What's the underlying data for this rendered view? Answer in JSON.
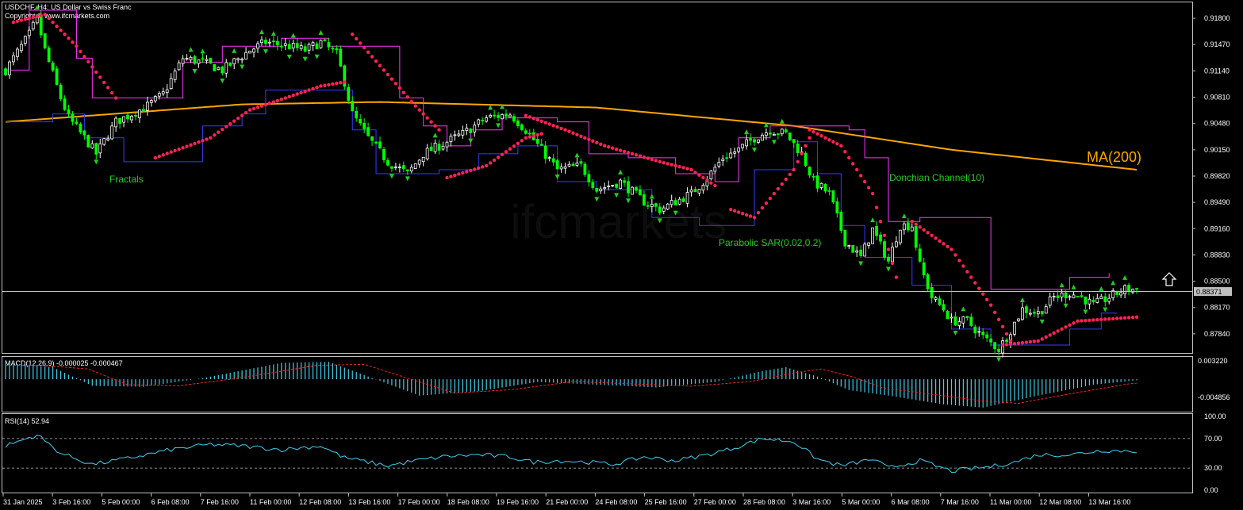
{
  "header": {
    "symbol_line": "USDCHF, H4:  US Dollar vs Swiss Franc",
    "copyright": "Copyright © www.ifcmarkets.com",
    "watermark": "ifcmarkets"
  },
  "colors": {
    "background": "#000000",
    "frame": "#c0c0c0",
    "axis_text": "#ffffff",
    "bull_candle": "#ffffff",
    "bear_candle": "#00ff00",
    "ma200": "#ffa500",
    "donchian_upper": "#ff33ff",
    "donchian_lower": "#3a3aff",
    "sar": "#ff2255",
    "fractal": "#22cc22",
    "macd_hist": "#40d0f0",
    "macd_signal": "#ff2222",
    "rsi_line": "#40d0f0",
    "annotation": "#22cc22",
    "price_line": "#c0c0c0"
  },
  "chart_data": {
    "type": "candlestick",
    "symbol": "USDCHF",
    "timeframe": "H4",
    "current_price": 0.88371,
    "price_axis": {
      "range": [
        0.876,
        0.92
      ],
      "ticks": [
        "0.91800",
        "0.91470",
        "0.91140",
        "0.90810",
        "0.90480",
        "0.90150",
        "0.89820",
        "0.89490",
        "0.89160",
        "0.88830",
        "0.88500",
        "0.88170",
        "0.87840"
      ]
    },
    "time_axis": {
      "ticks": [
        "31 Jan 2025",
        "3 Feb 16:00",
        "5 Feb 00:00",
        "6 Feb 08:00",
        "7 Feb 16:00",
        "11 Feb 00:00",
        "12 Feb 08:00",
        "13 Feb 16:00",
        "17 Feb 00:00",
        "18 Feb 08:00",
        "19 Feb 16:00",
        "21 Feb 00:00",
        "24 Feb 08:00",
        "25 Feb 16:00",
        "27 Feb 00:00",
        "28 Feb 08:00",
        "3 Mar 16:00",
        "5 Mar 00:00",
        "6 Mar 08:00",
        "7 Mar 16:00",
        "11 Mar 00:00",
        "12 Mar 08:00",
        "13 Mar 16:00"
      ]
    },
    "close_anchors": [
      [
        0,
        0.9115
      ],
      [
        6,
        0.916
      ],
      [
        8,
        0.918
      ],
      [
        10,
        0.914
      ],
      [
        14,
        0.908
      ],
      [
        16,
        0.9055
      ],
      [
        20,
        0.903
      ],
      [
        23,
        0.901
      ],
      [
        28,
        0.905
      ],
      [
        32,
        0.906
      ],
      [
        36,
        0.907
      ],
      [
        40,
        0.9085
      ],
      [
        45,
        0.913
      ],
      [
        50,
        0.9125
      ],
      [
        55,
        0.9115
      ],
      [
        62,
        0.914
      ],
      [
        66,
        0.915
      ],
      [
        72,
        0.9145
      ],
      [
        76,
        0.914
      ],
      [
        80,
        0.915
      ],
      [
        84,
        0.9135
      ],
      [
        86,
        0.91
      ],
      [
        88,
        0.906
      ],
      [
        92,
        0.903
      ],
      [
        97,
        0.9
      ],
      [
        102,
        0.8985
      ],
      [
        106,
        0.901
      ],
      [
        110,
        0.902
      ],
      [
        116,
        0.9035
      ],
      [
        122,
        0.9055
      ],
      [
        128,
        0.906
      ],
      [
        132,
        0.904
      ],
      [
        136,
        0.9015
      ],
      [
        140,
        0.899
      ],
      [
        146,
        0.8995
      ],
      [
        150,
        0.8965
      ],
      [
        156,
        0.8975
      ],
      [
        162,
        0.895
      ],
      [
        166,
        0.894
      ],
      [
        170,
        0.895
      ],
      [
        174,
        0.896
      ],
      [
        178,
        0.898
      ],
      [
        182,
        0.9005
      ],
      [
        186,
        0.9015
      ],
      [
        190,
        0.903
      ],
      [
        194,
        0.904
      ],
      [
        198,
        0.9035
      ],
      [
        202,
        0.901
      ],
      [
        205,
        0.8975
      ],
      [
        209,
        0.896
      ],
      [
        213,
        0.89
      ],
      [
        217,
        0.888
      ],
      [
        220,
        0.8915
      ],
      [
        224,
        0.8875
      ],
      [
        227,
        0.892
      ],
      [
        230,
        0.892
      ],
      [
        232,
        0.887
      ],
      [
        235,
        0.883
      ],
      [
        238,
        0.8815
      ],
      [
        240,
        0.88
      ],
      [
        244,
        0.88
      ],
      [
        248,
        0.878
      ],
      [
        252,
        0.8765
      ],
      [
        254,
        0.878
      ],
      [
        258,
        0.8815
      ],
      [
        262,
        0.881
      ],
      [
        266,
        0.883
      ],
      [
        270,
        0.8835
      ],
      [
        273,
        0.883
      ],
      [
        276,
        0.882
      ],
      [
        280,
        0.883
      ],
      [
        284,
        0.884
      ],
      [
        287,
        0.884
      ]
    ],
    "ma200": [
      [
        0,
        0.905
      ],
      [
        60,
        0.9072
      ],
      [
        95,
        0.9075
      ],
      [
        150,
        0.9068
      ],
      [
        200,
        0.9045
      ],
      [
        240,
        0.9015
      ],
      [
        287,
        0.899
      ]
    ],
    "sar_segments": [
      {
        "side": "above",
        "points": [
          [
            2,
            0.9175
          ],
          [
            10,
            0.9185
          ],
          [
            18,
            0.9145
          ],
          [
            28,
            0.908
          ]
        ]
      },
      {
        "side": "below",
        "points": [
          [
            38,
            0.9005
          ],
          [
            52,
            0.903
          ],
          [
            62,
            0.9065
          ],
          [
            80,
            0.9095
          ],
          [
            86,
            0.91
          ]
        ]
      },
      {
        "side": "above",
        "points": [
          [
            88,
            0.916
          ],
          [
            96,
            0.9115
          ],
          [
            104,
            0.907
          ],
          [
            110,
            0.904
          ]
        ]
      },
      {
        "side": "below",
        "points": [
          [
            112,
            0.898
          ],
          [
            122,
            0.8995
          ],
          [
            132,
            0.903
          ],
          [
            136,
            0.9035
          ]
        ]
      },
      {
        "side": "above",
        "points": [
          [
            132,
            0.9058
          ],
          [
            142,
            0.904
          ],
          [
            152,
            0.902
          ],
          [
            166,
            0.9
          ],
          [
            174,
            0.899
          ],
          [
            180,
            0.897
          ]
        ]
      },
      {
        "side": "below",
        "points": [
          [
            184,
            0.894
          ],
          [
            190,
            0.893
          ],
          [
            200,
            0.899
          ],
          [
            204,
            0.903
          ]
        ]
      },
      {
        "side": "above",
        "points": [
          [
            204,
            0.904
          ],
          [
            212,
            0.902
          ],
          [
            220,
            0.896
          ],
          [
            226,
            0.8855
          ]
        ]
      },
      {
        "side": "above",
        "points": [
          [
            230,
            0.8925
          ],
          [
            240,
            0.889
          ],
          [
            250,
            0.882
          ],
          [
            255,
            0.8775
          ]
        ]
      },
      {
        "side": "below",
        "points": [
          [
            253,
            0.877
          ],
          [
            262,
            0.8775
          ],
          [
            272,
            0.88
          ],
          [
            287,
            0.8805
          ]
        ]
      }
    ],
    "donchian_upper": [
      [
        0,
        0.9115
      ],
      [
        6,
        0.919
      ],
      [
        15,
        0.919
      ],
      [
        18,
        0.913
      ],
      [
        22,
        0.908
      ],
      [
        40,
        0.908
      ],
      [
        45,
        0.9125
      ],
      [
        55,
        0.9145
      ],
      [
        70,
        0.9155
      ],
      [
        82,
        0.9145
      ],
      [
        96,
        0.9145
      ],
      [
        100,
        0.908
      ],
      [
        106,
        0.9045
      ],
      [
        112,
        0.902
      ],
      [
        118,
        0.904
      ],
      [
        126,
        0.9055
      ],
      [
        140,
        0.905
      ],
      [
        148,
        0.901
      ],
      [
        158,
        0.9005
      ],
      [
        170,
        0.8985
      ],
      [
        180,
        0.8975
      ],
      [
        186,
        0.903
      ],
      [
        194,
        0.9045
      ],
      [
        214,
        0.904
      ],
      [
        218,
        0.9005
      ],
      [
        224,
        0.8925
      ],
      [
        232,
        0.893
      ],
      [
        244,
        0.893
      ],
      [
        250,
        0.884
      ],
      [
        256,
        0.884
      ],
      [
        264,
        0.884
      ],
      [
        270,
        0.8855
      ],
      [
        280,
        0.886
      ]
    ],
    "donchian_lower": [
      [
        0,
        0.905
      ],
      [
        12,
        0.906
      ],
      [
        20,
        0.903
      ],
      [
        30,
        0.9
      ],
      [
        42,
        0.9
      ],
      [
        50,
        0.9045
      ],
      [
        60,
        0.906
      ],
      [
        66,
        0.909
      ],
      [
        80,
        0.909
      ],
      [
        88,
        0.904
      ],
      [
        94,
        0.8985
      ],
      [
        110,
        0.899
      ],
      [
        120,
        0.901
      ],
      [
        130,
        0.902
      ],
      [
        140,
        0.8975
      ],
      [
        150,
        0.8965
      ],
      [
        164,
        0.893
      ],
      [
        176,
        0.892
      ],
      [
        182,
        0.892
      ],
      [
        190,
        0.899
      ],
      [
        200,
        0.9025
      ],
      [
        206,
        0.8985
      ],
      [
        212,
        0.892
      ],
      [
        218,
        0.888
      ],
      [
        230,
        0.8845
      ],
      [
        240,
        0.879
      ],
      [
        250,
        0.877
      ],
      [
        260,
        0.877
      ],
      [
        270,
        0.879
      ],
      [
        278,
        0.881
      ],
      [
        282,
        0.881
      ]
    ],
    "annotations": [
      {
        "text": "Fractals",
        "pointer": "fractals"
      },
      {
        "text": "Donchian Channel(10)",
        "pointer": "donchian"
      },
      {
        "text": "Parabolic SAR(0.02,0.2)",
        "pointer": "sar"
      },
      {
        "text": "MA(200)",
        "pointer": "ma"
      }
    ],
    "macd": {
      "label": "MACD(12,26,9) -0.000025 -0.000467",
      "ticks": [
        "0.003220",
        "-0.004856"
      ],
      "range": [
        -0.0058,
        0.0038
      ],
      "anchors": [
        [
          0,
          0.003
        ],
        [
          12,
          0.0022
        ],
        [
          22,
          -0.0012
        ],
        [
          35,
          -0.0014
        ],
        [
          50,
          0.0002
        ],
        [
          70,
          0.003
        ],
        [
          82,
          0.0032
        ],
        [
          92,
          0.0005
        ],
        [
          105,
          -0.003
        ],
        [
          120,
          -0.0022
        ],
        [
          135,
          -0.0005
        ],
        [
          150,
          -0.001
        ],
        [
          165,
          -0.0015
        ],
        [
          180,
          -0.0005
        ],
        [
          192,
          0.0015
        ],
        [
          198,
          0.0022
        ],
        [
          206,
          0.0005
        ],
        [
          214,
          -0.002
        ],
        [
          224,
          -0.003
        ],
        [
          238,
          -0.0046
        ],
        [
          248,
          -0.0052
        ],
        [
          262,
          -0.003
        ],
        [
          276,
          -0.001
        ],
        [
          287,
          -0.0002
        ]
      ]
    },
    "rsi": {
      "label": "RSI(14) 52.94",
      "ticks": [
        "100.00",
        "70.00",
        "30.00",
        "0.00"
      ],
      "levels": [
        70,
        30
      ],
      "anchors": [
        [
          0,
          60
        ],
        [
          8,
          75
        ],
        [
          14,
          50
        ],
        [
          22,
          35
        ],
        [
          30,
          42
        ],
        [
          42,
          55
        ],
        [
          52,
          62
        ],
        [
          60,
          60
        ],
        [
          70,
          55
        ],
        [
          80,
          60
        ],
        [
          86,
          44
        ],
        [
          92,
          38
        ],
        [
          97,
          33
        ],
        [
          104,
          40
        ],
        [
          112,
          46
        ],
        [
          120,
          48
        ],
        [
          128,
          45
        ],
        [
          134,
          38
        ],
        [
          140,
          40
        ],
        [
          148,
          38
        ],
        [
          154,
          35
        ],
        [
          162,
          45
        ],
        [
          170,
          40
        ],
        [
          178,
          48
        ],
        [
          184,
          56
        ],
        [
          192,
          70
        ],
        [
          200,
          66
        ],
        [
          206,
          42
        ],
        [
          212,
          33
        ],
        [
          220,
          42
        ],
        [
          224,
          30
        ],
        [
          232,
          40
        ],
        [
          240,
          26
        ],
        [
          250,
          32
        ],
        [
          256,
          38
        ],
        [
          262,
          48
        ],
        [
          270,
          48
        ],
        [
          278,
          54
        ],
        [
          287,
          52.94
        ]
      ]
    },
    "current_price_label": "0.88371"
  }
}
